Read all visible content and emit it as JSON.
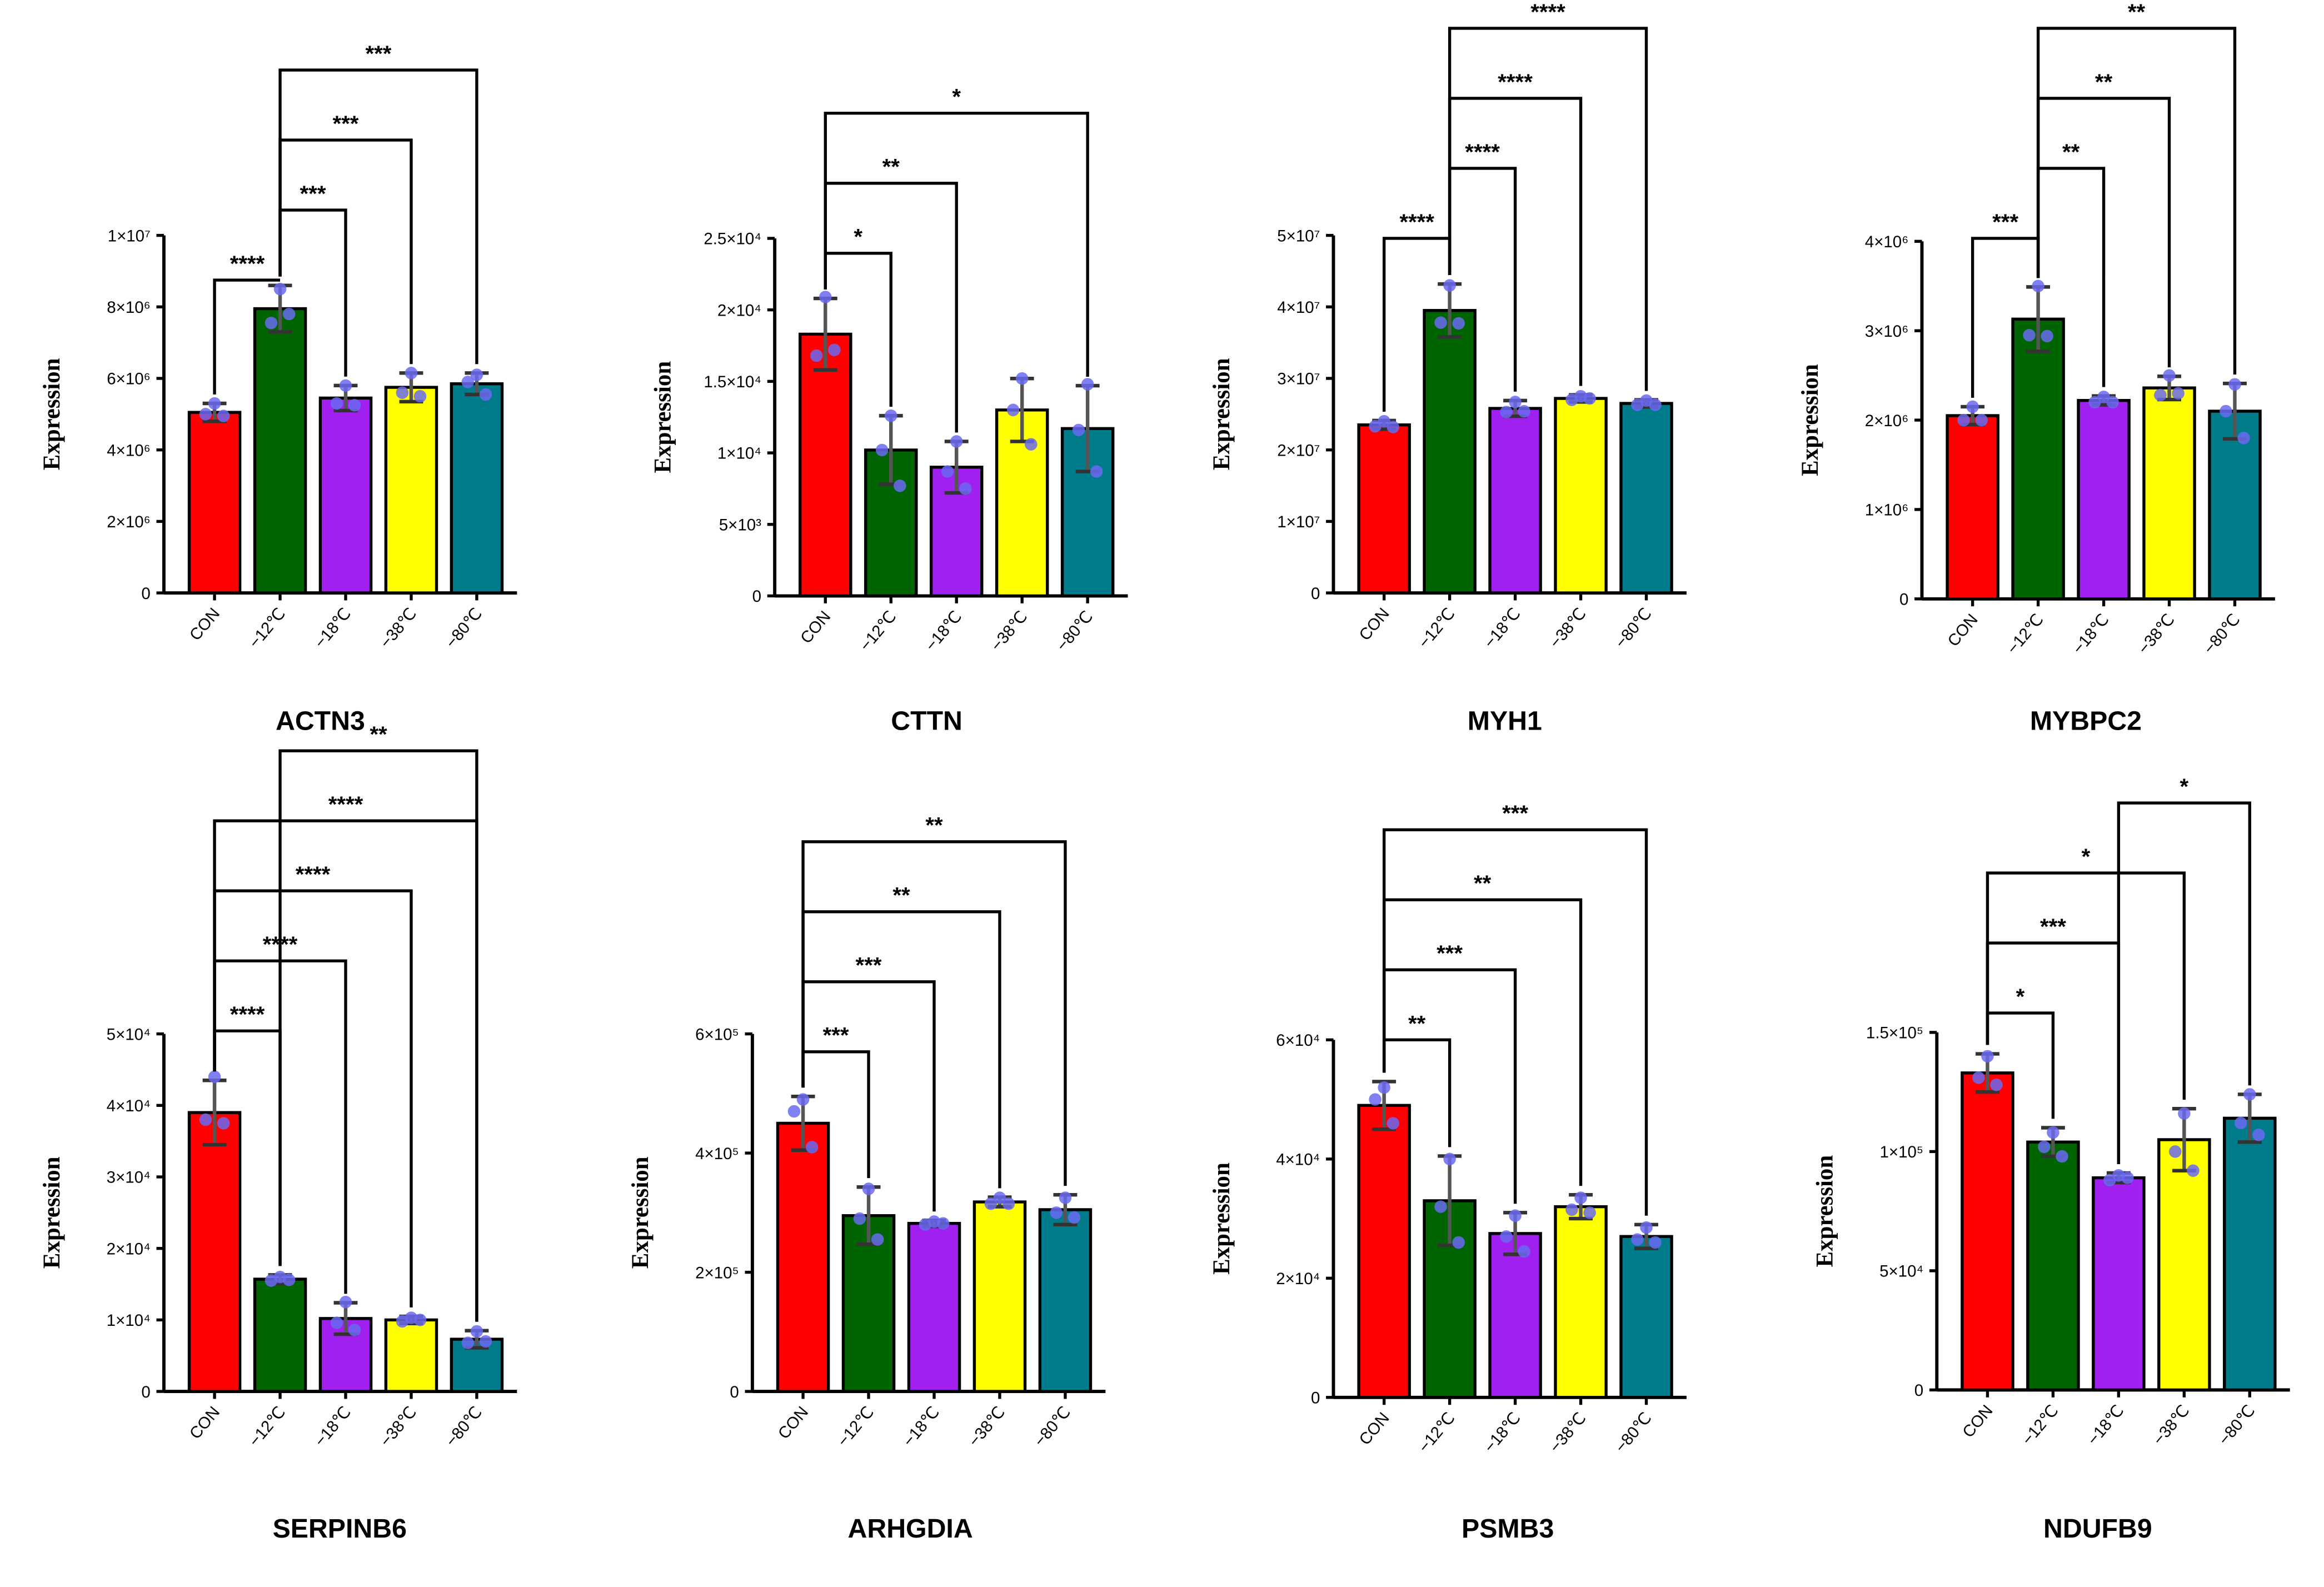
{
  "page": {
    "description_free": true
  },
  "chart_data": [
    {
      "type": "bar",
      "title": "ACTN3",
      "ylabel": "Expression",
      "ylim": [
        0,
        10000000
      ],
      "yticks": [
        0,
        2000000,
        4000000,
        6000000,
        8000000,
        10000000
      ],
      "ytick_labels": [
        "0",
        "2×10⁶",
        "4×10⁶",
        "6×10⁶",
        "8×10⁶",
        "1×10⁷"
      ],
      "categories": [
        "CON",
        "−12℃",
        "−18℃",
        "−38℃",
        "−80℃"
      ],
      "colors": [
        "#ff0000",
        "#006400",
        "#a020f0",
        "#ffff00",
        "#007b8a"
      ],
      "values": [
        5050000,
        7950000,
        5450000,
        5750000,
        5850000
      ],
      "errors": [
        250000,
        650000,
        350000,
        400000,
        300000
      ],
      "points": [
        [
          5300000,
          5000000,
          4950000
        ],
        [
          8500000,
          7550000,
          7800000
        ],
        [
          5800000,
          5300000,
          5250000
        ],
        [
          6150000,
          5600000,
          5500000
        ],
        [
          6100000,
          5900000,
          5550000
        ]
      ],
      "comparisons": [
        {
          "from": 0,
          "to": 1,
          "label": "****"
        },
        {
          "from": 1,
          "to": 2,
          "label": "***"
        },
        {
          "from": 1,
          "to": 3,
          "label": "***"
        },
        {
          "from": 1,
          "to": 4,
          "label": "***"
        }
      ]
    },
    {
      "type": "bar",
      "title": "CTTN",
      "ylabel": "Expression",
      "ylim": [
        0,
        25000
      ],
      "yticks": [
        0,
        5000,
        10000,
        15000,
        20000,
        25000
      ],
      "ytick_labels": [
        "0",
        "5×10³",
        "1×10⁴",
        "1.5×10⁴",
        "2×10⁴",
        "2.5×10⁴"
      ],
      "categories": [
        "CON",
        "−12℃",
        "−18℃",
        "−38℃",
        "−80℃"
      ],
      "colors": [
        "#ff0000",
        "#006400",
        "#a020f0",
        "#ffff00",
        "#007b8a"
      ],
      "values": [
        18300,
        10200,
        9000,
        13000,
        11700
      ],
      "errors": [
        2500,
        2400,
        1800,
        2200,
        3000
      ],
      "points": [
        [
          20900,
          16800,
          17200
        ],
        [
          12600,
          10200,
          7700
        ],
        [
          10800,
          8700,
          7500
        ],
        [
          15200,
          13000,
          10600
        ],
        [
          14800,
          11600,
          8700
        ]
      ],
      "comparisons": [
        {
          "from": 0,
          "to": 1,
          "label": "*"
        },
        {
          "from": 0,
          "to": 2,
          "label": "**"
        },
        {
          "from": 0,
          "to": 4,
          "label": "*"
        }
      ]
    },
    {
      "type": "bar",
      "title": "MYH1",
      "ylabel": "Expression",
      "ylim": [
        0,
        50000000
      ],
      "yticks": [
        0,
        10000000,
        20000000,
        30000000,
        40000000,
        50000000
      ],
      "ytick_labels": [
        "0",
        "1×10⁷",
        "2×10⁷",
        "3×10⁷",
        "4×10⁷",
        "5×10⁷"
      ],
      "categories": [
        "CON",
        "−12℃",
        "−18℃",
        "−38℃",
        "−80℃"
      ],
      "colors": [
        "#ff0000",
        "#006400",
        "#a020f0",
        "#ffff00",
        "#007b8a"
      ],
      "values": [
        23500000,
        39500000,
        25800000,
        27200000,
        26500000
      ],
      "errors": [
        600000,
        3700000,
        1100000,
        500000,
        500000
      ],
      "points": [
        [
          24000000,
          23300000,
          23200000
        ],
        [
          43000000,
          37800000,
          37700000
        ],
        [
          26700000,
          25300000,
          25400000
        ],
        [
          27500000,
          27000000,
          27200000
        ],
        [
          26900000,
          26300000,
          26300000
        ]
      ],
      "comparisons": [
        {
          "from": 0,
          "to": 1,
          "label": "****"
        },
        {
          "from": 1,
          "to": 2,
          "label": "****"
        },
        {
          "from": 1,
          "to": 3,
          "label": "****"
        },
        {
          "from": 1,
          "to": 4,
          "label": "****"
        }
      ]
    },
    {
      "type": "bar",
      "title": "MYBPC2",
      "ylabel": "Expression",
      "ylim": [
        0,
        4000000
      ],
      "yticks": [
        0,
        1000000,
        2000000,
        3000000,
        4000000
      ],
      "ytick_labels": [
        "0",
        "1×10⁶",
        "2×10⁶",
        "3×10⁶",
        "4×10⁶"
      ],
      "categories": [
        "CON",
        "−12℃",
        "−18℃",
        "−38℃",
        "−80℃"
      ],
      "colors": [
        "#ff0000",
        "#006400",
        "#a020f0",
        "#ffff00",
        "#007b8a"
      ],
      "values": [
        2050000,
        3130000,
        2220000,
        2360000,
        2100000
      ],
      "errors": [
        100000,
        360000,
        50000,
        130000,
        310000
      ],
      "points": [
        [
          2150000,
          2000000,
          2000000
        ],
        [
          3500000,
          2950000,
          2940000
        ],
        [
          2260000,
          2200000,
          2200000
        ],
        [
          2500000,
          2280000,
          2300000
        ],
        [
          2400000,
          2100000,
          1800000
        ]
      ],
      "comparisons": [
        {
          "from": 0,
          "to": 1,
          "label": "***"
        },
        {
          "from": 1,
          "to": 2,
          "label": "**"
        },
        {
          "from": 1,
          "to": 3,
          "label": "**"
        },
        {
          "from": 1,
          "to": 4,
          "label": "**"
        }
      ]
    },
    {
      "type": "bar",
      "title": "SERPINB6",
      "ylabel": "Expression",
      "ylim": [
        0,
        50000
      ],
      "yticks": [
        0,
        10000,
        20000,
        30000,
        40000,
        50000
      ],
      "ytick_labels": [
        "0",
        "1×10⁴",
        "2×10⁴",
        "3×10⁴",
        "4×10⁴",
        "5×10⁴"
      ],
      "categories": [
        "CON",
        "−12℃",
        "−18℃",
        "−38℃",
        "−80℃"
      ],
      "colors": [
        "#ff0000",
        "#006400",
        "#a020f0",
        "#ffff00",
        "#007b8a"
      ],
      "values": [
        39000,
        15700,
        10200,
        10000,
        7300
      ],
      "errors": [
        4500,
        600,
        2200,
        500,
        1200
      ],
      "points": [
        [
          44000,
          38000,
          37500
        ],
        [
          16000,
          15500,
          15600
        ],
        [
          12500,
          9600,
          8600
        ],
        [
          10300,
          9800,
          10000
        ],
        [
          8400,
          6800,
          7000
        ]
      ],
      "comparisons": [
        {
          "from": 0,
          "to": 1,
          "label": "****"
        },
        {
          "from": 0,
          "to": 2,
          "label": "****"
        },
        {
          "from": 0,
          "to": 3,
          "label": "****"
        },
        {
          "from": 0,
          "to": 4,
          "label": "****"
        },
        {
          "from": 1,
          "to": 4,
          "label": "**"
        }
      ]
    },
    {
      "type": "bar",
      "title": "ARHGDIA",
      "ylabel": "Expression",
      "ylim": [
        0,
        600000
      ],
      "yticks": [
        0,
        200000,
        400000,
        600000
      ],
      "ytick_labels": [
        "0",
        "2×10⁵",
        "4×10⁵",
        "6×10⁵"
      ],
      "categories": [
        "CON",
        "−12℃",
        "−18℃",
        "−38℃",
        "−80℃"
      ],
      "colors": [
        "#ff0000",
        "#006400",
        "#a020f0",
        "#ffff00",
        "#007b8a"
      ],
      "values": [
        450000,
        295000,
        282000,
        318000,
        305000
      ],
      "errors": [
        45000,
        48000,
        5000,
        8000,
        25000
      ],
      "points": [
        [
          490000,
          470000,
          410000
        ],
        [
          340000,
          290000,
          255000
        ],
        [
          285000,
          280000,
          282000
        ],
        [
          325000,
          315000,
          315000
        ],
        [
          325000,
          300000,
          292000
        ]
      ],
      "comparisons": [
        {
          "from": 0,
          "to": 1,
          "label": "***"
        },
        {
          "from": 0,
          "to": 2,
          "label": "***"
        },
        {
          "from": 0,
          "to": 3,
          "label": "**"
        },
        {
          "from": 0,
          "to": 4,
          "label": "**"
        }
      ]
    },
    {
      "type": "bar",
      "title": "PSMB3",
      "ylabel": "Expression",
      "ylim": [
        0,
        60000
      ],
      "yticks": [
        0,
        20000,
        40000,
        60000
      ],
      "ytick_labels": [
        "0",
        "2×10⁴",
        "4×10⁴",
        "6×10⁴"
      ],
      "categories": [
        "CON",
        "−12℃",
        "−18℃",
        "−38℃",
        "−80℃"
      ],
      "colors": [
        "#ff0000",
        "#006400",
        "#a020f0",
        "#ffff00",
        "#007b8a"
      ],
      "values": [
        49000,
        33000,
        27500,
        32000,
        27000
      ],
      "errors": [
        4000,
        7500,
        3500,
        2000,
        2000
      ],
      "points": [
        [
          52000,
          50000,
          46000
        ],
        [
          40000,
          32000,
          26000
        ],
        [
          30500,
          27000,
          24500
        ],
        [
          33500,
          31500,
          31000
        ],
        [
          28500,
          26500,
          26000
        ]
      ],
      "comparisons": [
        {
          "from": 0,
          "to": 1,
          "label": "**"
        },
        {
          "from": 0,
          "to": 2,
          "label": "***"
        },
        {
          "from": 0,
          "to": 3,
          "label": "**"
        },
        {
          "from": 0,
          "to": 4,
          "label": "***"
        }
      ]
    },
    {
      "type": "bar",
      "title": "NDUFB9",
      "ylabel": "Expression",
      "ylim": [
        0,
        150000
      ],
      "yticks": [
        0,
        50000,
        100000,
        150000
      ],
      "ytick_labels": [
        "0",
        "5×10⁴",
        "1×10⁵",
        "1.5×10⁵"
      ],
      "categories": [
        "CON",
        "−12℃",
        "−18℃",
        "−38℃",
        "−80℃"
      ],
      "colors": [
        "#ff0000",
        "#006400",
        "#a020f0",
        "#ffff00",
        "#007b8a"
      ],
      "values": [
        133000,
        104000,
        89000,
        105000,
        114000
      ],
      "errors": [
        8000,
        6000,
        2000,
        13000,
        10000
      ],
      "points": [
        [
          140000,
          131000,
          128000
        ],
        [
          108000,
          102000,
          98000
        ],
        [
          90000,
          88000,
          89000
        ],
        [
          116000,
          100000,
          92000
        ],
        [
          124000,
          112000,
          107000
        ]
      ],
      "comparisons": [
        {
          "from": 0,
          "to": 1,
          "label": "*"
        },
        {
          "from": 0,
          "to": 2,
          "label": "***"
        },
        {
          "from": 0,
          "to": 3,
          "label": "*"
        },
        {
          "from": 2,
          "to": 4,
          "label": "*"
        }
      ]
    }
  ]
}
